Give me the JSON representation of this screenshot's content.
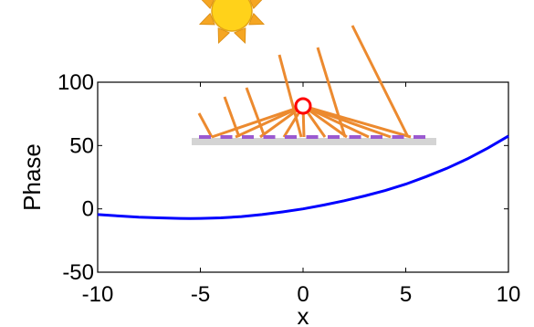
{
  "chart_data": {
    "type": "line",
    "title": "",
    "xlabel": "x",
    "ylabel": "Phase",
    "xlim": [
      -10,
      10
    ],
    "ylim": [
      -50,
      100
    ],
    "xticks": [
      -10,
      -5,
      0,
      5,
      10
    ],
    "yticks": [
      -50,
      0,
      50,
      100
    ],
    "xtick_labels": [
      "-10",
      "-5",
      "0",
      "5",
      "10"
    ],
    "ytick_labels": [
      "-50",
      "0",
      "50",
      "100"
    ],
    "grid": false,
    "legend": "none",
    "series": [
      {
        "color": "#0000ff",
        "x": [
          -10,
          -9,
          -8,
          -7,
          -6,
          -5.5,
          -5,
          -4,
          -3,
          -2,
          -1,
          0,
          1,
          2,
          3,
          4,
          5,
          6,
          7,
          8,
          9,
          10
        ],
        "y": [
          -4.5,
          -5.6,
          -6.5,
          -7.1,
          -7.5,
          -7.6,
          -7.5,
          -7.1,
          -6.1,
          -4.5,
          -2.4,
          0,
          3.0,
          6.4,
          10.2,
          14.5,
          19.5,
          25.5,
          32.0,
          39.5,
          48.0,
          57.5
        ]
      }
    ]
  },
  "inset": {
    "colors": {
      "sun": "#ffd21a",
      "sun_rays": "#f5a623",
      "ray_lines": "#ec8a2f",
      "focus_marker": "#ff0000",
      "mirror_base": "#d4d4d4",
      "mirror_elements": "#9b59d0"
    },
    "icons": [
      "sun-icon",
      "focus-point-icon",
      "mirror-array"
    ]
  }
}
